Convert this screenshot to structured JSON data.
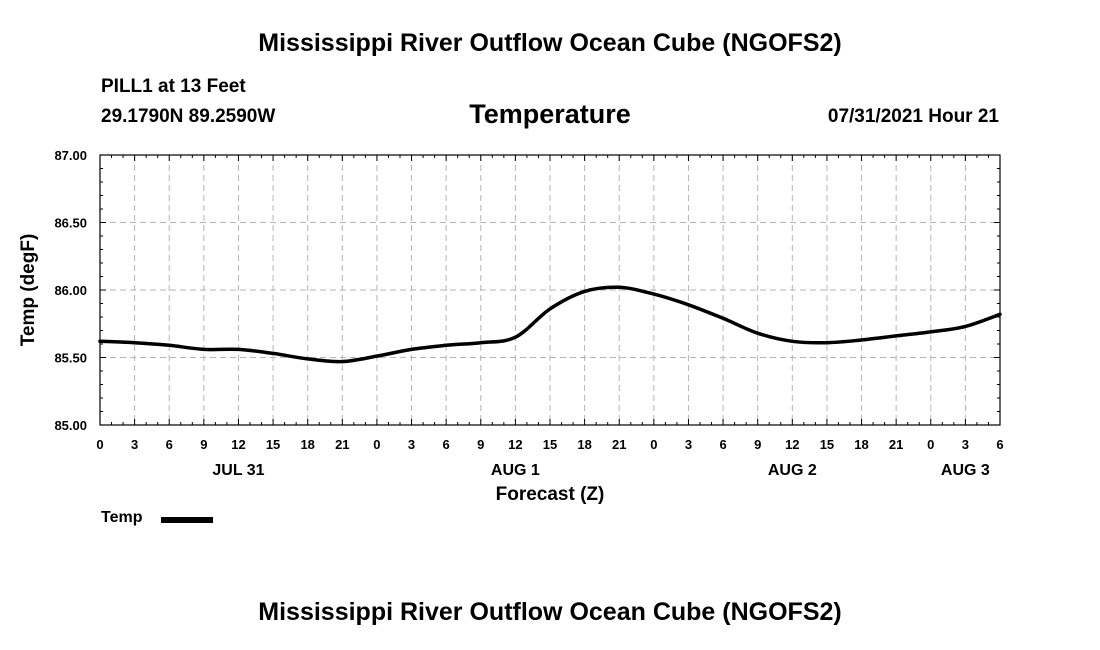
{
  "header": {
    "title": "Mississippi River Outflow Ocean Cube (NGOFS2)",
    "station": "PILL1 at 13 Feet",
    "coordinates": "29.1790N  89.2590W",
    "parameter": "Temperature",
    "datetime": "07/31/2021 Hour 21"
  },
  "footer": {
    "title": "Mississippi River Outflow Ocean Cube (NGOFS2)"
  },
  "legend": {
    "label": "Temp"
  },
  "chart_data": {
    "type": "line",
    "title": "Temperature",
    "xlabel": "Forecast (Z)",
    "ylabel": "Temp (degF)",
    "xlim": [
      0,
      78
    ],
    "ylim": [
      85.0,
      87.0
    ],
    "grid": true,
    "legend_position": "bottom-left",
    "y_ticks": [
      "85.00",
      "85.50",
      "86.00",
      "86.50",
      "87.00"
    ],
    "y_tick_values": [
      85.0,
      85.5,
      86.0,
      86.5,
      87.0
    ],
    "x_tick_values": [
      0,
      3,
      6,
      9,
      12,
      15,
      18,
      21,
      24,
      27,
      30,
      33,
      36,
      39,
      42,
      45,
      48,
      51,
      54,
      57,
      60,
      63,
      66,
      69,
      72,
      75,
      78
    ],
    "x_tick_labels": [
      "0",
      "3",
      "6",
      "9",
      "12",
      "15",
      "18",
      "21",
      "0",
      "3",
      "6",
      "9",
      "12",
      "15",
      "18",
      "21",
      "0",
      "3",
      "6",
      "9",
      "12",
      "15",
      "18",
      "21",
      "0",
      "3",
      "6"
    ],
    "date_labels": [
      {
        "label": "JUL 31",
        "x": 12
      },
      {
        "label": "AUG 1",
        "x": 36
      },
      {
        "label": "AUG 2",
        "x": 60
      },
      {
        "label": "AUG 3",
        "x": 75
      }
    ],
    "series": [
      {
        "name": "Temp",
        "color": "#000000",
        "x": [
          0,
          3,
          6,
          9,
          12,
          15,
          18,
          21,
          24,
          27,
          30,
          33,
          36,
          39,
          42,
          45,
          48,
          51,
          54,
          57,
          60,
          63,
          66,
          69,
          72,
          75,
          78
        ],
        "values": [
          85.62,
          85.61,
          85.59,
          85.56,
          85.56,
          85.53,
          85.49,
          85.47,
          85.51,
          85.56,
          85.59,
          85.61,
          85.65,
          85.86,
          85.99,
          86.02,
          85.97,
          85.89,
          85.79,
          85.68,
          85.62,
          85.61,
          85.63,
          85.66,
          85.69,
          85.73,
          85.82
        ]
      }
    ]
  }
}
